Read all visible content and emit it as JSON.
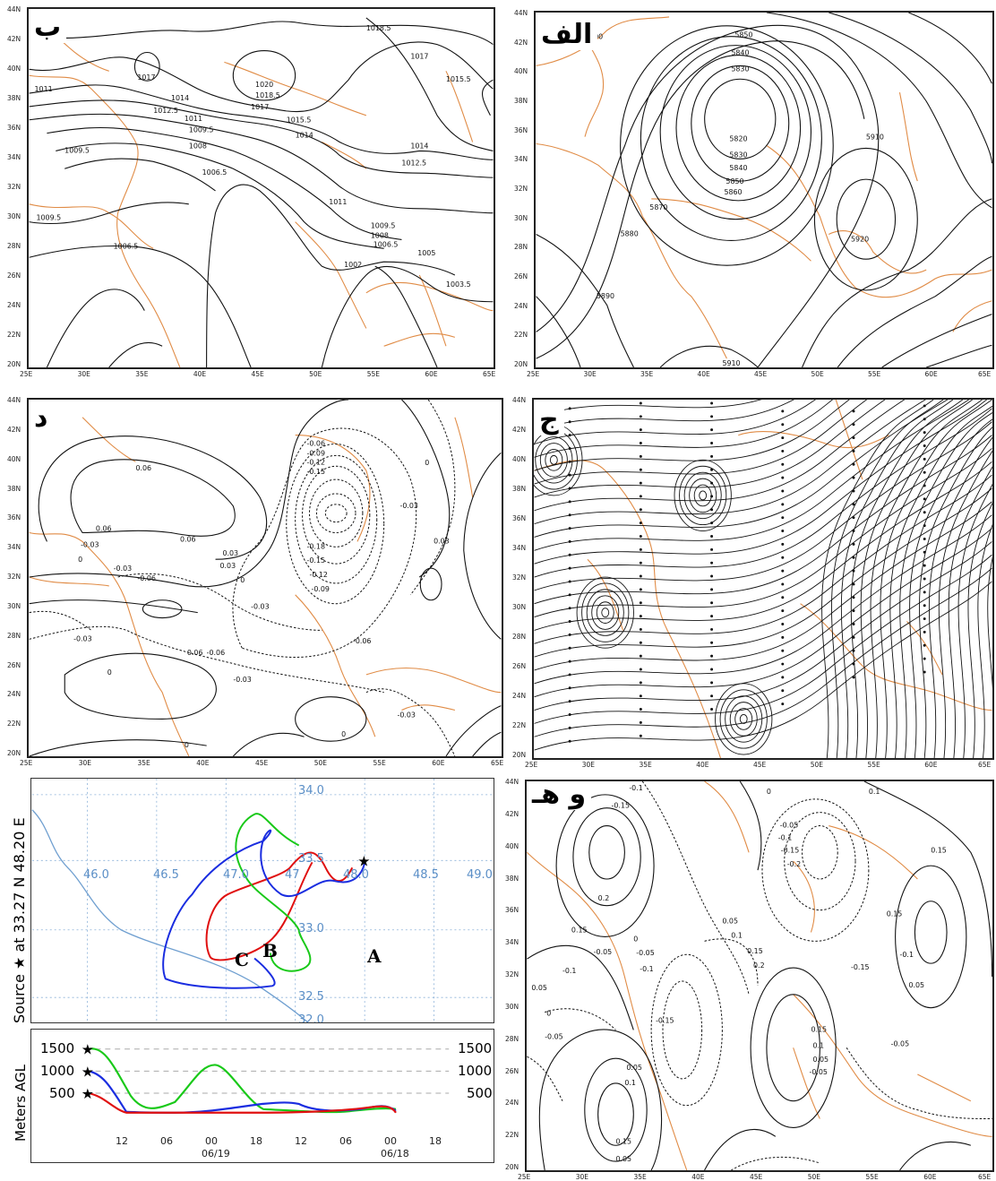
{
  "panels": {
    "alef": {
      "letter": "الف",
      "contours": [
        "5900",
        "5850",
        "5840",
        "5830",
        "5820",
        "5830",
        "5840",
        "5850",
        "5860",
        "5870",
        "5880",
        "5890",
        "5910",
        "5920",
        "5910"
      ]
    },
    "be": {
      "letter": "ب",
      "contours": [
        "1018.5",
        "1017",
        "1015.5",
        "1017",
        "1020",
        "1018.5",
        "1017",
        "1015.5",
        "1014",
        "1012.5",
        "1011",
        "1009.5",
        "1008",
        "1006.5",
        "1009.5",
        "1011",
        "1014",
        "1014",
        "1012.5",
        "1009.5",
        "1008",
        "1006.5",
        "1005",
        "1002",
        "1003.5",
        "1006.5",
        "1009.5",
        "1011"
      ]
    },
    "jim": {
      "letter": "ج"
    },
    "dal": {
      "letter": "د",
      "contours": [
        "0.06",
        "0.06",
        "-0.03",
        "0",
        "0.03",
        "0.06",
        "-0.03",
        "-0.06",
        "0.03",
        "0",
        "-0.03",
        "-0.06",
        "-0.09",
        "-0.12",
        "-0.15",
        "-0.18",
        "-0.15",
        "-0.12",
        "-0.09",
        "0",
        "-0.03",
        "-0.06",
        "0",
        "0.03",
        "0.06",
        "0",
        "-0.03",
        "-0.06",
        "-0.03",
        "0",
        "-0.03"
      ]
    },
    "he_vav": {
      "letter": "و هـ",
      "contours": [
        "-0.1",
        "-0.15",
        "0",
        "0.1",
        "0.15",
        "0.2",
        "0.15",
        "-0.1",
        "-0.05",
        "0.05",
        "0",
        "-0.05",
        "-0.1",
        "-0.15",
        "0.05",
        "0.1",
        "0.15",
        "0.2",
        "-0.05",
        "-0.1",
        "-0.15",
        "-0.2",
        "0.15",
        "-0.1",
        "0.05",
        "-0.15",
        "-0.05",
        "0",
        "0.15",
        "0.1",
        "0.05",
        "-0.05",
        "0.05",
        "0.1",
        "-0.05",
        "0.15",
        "0.05"
      ]
    }
  },
  "axes": {
    "lat_ticks": [
      "44N",
      "42N",
      "40N",
      "38N",
      "36N",
      "34N",
      "32N",
      "30N",
      "28N",
      "26N",
      "24N",
      "22N",
      "20N"
    ],
    "lon_ticks": [
      "25E",
      "30E",
      "35E",
      "40E",
      "45E",
      "50E",
      "55E",
      "60E",
      "65E"
    ]
  },
  "trajectory": {
    "side_title": "Source ★ at 33.27 N  48.20 E",
    "lon_labels": [
      "46.0",
      "46.5",
      "47.0",
      "47",
      "48.0",
      "48.5",
      "49.0"
    ],
    "lat_labels": [
      "34.0",
      "33.5",
      "33.0",
      "32.5",
      "32.0"
    ],
    "series": [
      {
        "name": "A",
        "color": "#e01010"
      },
      {
        "name": "B",
        "color": "#19c919"
      },
      {
        "name": "C",
        "color": "#1a2de0"
      }
    ],
    "height_title": "Meters AGL",
    "heights": [
      "1500",
      "1000",
      "500"
    ],
    "heights_right": [
      "1500",
      "1000",
      "500"
    ],
    "time_labels": [
      "12",
      "06",
      "00",
      "18",
      "12",
      "06",
      "00",
      "18"
    ],
    "date_labels": [
      "06/19",
      "06/18"
    ]
  }
}
